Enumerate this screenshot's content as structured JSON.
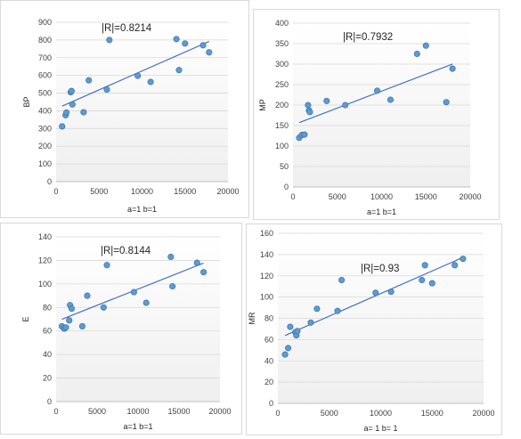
{
  "chart_data": [
    {
      "type": "scatter",
      "xlabel": "a=1  b=1",
      "ylabel": "BP",
      "annotation": "|R|=0.8214",
      "xlim": [
        0,
        20000
      ],
      "ylim": [
        0,
        900
      ],
      "xticks": [
        0,
        5000,
        10000,
        15000,
        20000
      ],
      "yticks": [
        0,
        100,
        200,
        300,
        400,
        500,
        600,
        700,
        800,
        900
      ],
      "grid": true,
      "trendline": "linear",
      "points": [
        [
          700,
          312
        ],
        [
          1100,
          375
        ],
        [
          1200,
          390
        ],
        [
          1700,
          505
        ],
        [
          1800,
          512
        ],
        [
          1900,
          436
        ],
        [
          3200,
          392
        ],
        [
          3800,
          572
        ],
        [
          5900,
          520
        ],
        [
          6200,
          800
        ],
        [
          9500,
          598
        ],
        [
          11000,
          563
        ],
        [
          14000,
          805
        ],
        [
          14300,
          630
        ],
        [
          15000,
          780
        ],
        [
          17100,
          770
        ],
        [
          17800,
          730
        ]
      ],
      "marker_color": "#5b9bd5",
      "line_color": "#4472c4"
    },
    {
      "type": "scatter",
      "xlabel": "a=1  b=1",
      "ylabel": "MP",
      "annotation": "|R|=0.7932",
      "xlim": [
        0,
        20000
      ],
      "ylim": [
        0,
        400
      ],
      "xticks": [
        0,
        5000,
        10000,
        15000,
        20000
      ],
      "yticks": [
        0,
        50,
        100,
        150,
        200,
        250,
        300,
        350,
        400
      ],
      "grid": true,
      "trendline": "linear",
      "points": [
        [
          700,
          120
        ],
        [
          1000,
          127
        ],
        [
          1300,
          128
        ],
        [
          1700,
          200
        ],
        [
          1800,
          187
        ],
        [
          1900,
          183
        ],
        [
          3800,
          210
        ],
        [
          5900,
          200
        ],
        [
          9500,
          235
        ],
        [
          11000,
          213
        ],
        [
          14000,
          325
        ],
        [
          15000,
          345
        ],
        [
          17300,
          207
        ],
        [
          18000,
          289
        ]
      ],
      "marker_color": "#5b9bd5",
      "line_color": "#4472c4"
    },
    {
      "type": "scatter",
      "xlabel": "a=1  b=1",
      "ylabel": "E",
      "annotation": "|R|=0.8144",
      "xlim": [
        0,
        20000
      ],
      "ylim": [
        0,
        140
      ],
      "xticks": [
        0,
        5000,
        10000,
        15000,
        20000
      ],
      "yticks": [
        0,
        20,
        40,
        60,
        80,
        100,
        120,
        140
      ],
      "grid": true,
      "trendline": "linear",
      "points": [
        [
          700,
          64
        ],
        [
          1000,
          62
        ],
        [
          1200,
          63
        ],
        [
          1600,
          69
        ],
        [
          1700,
          82
        ],
        [
          1900,
          79
        ],
        [
          3200,
          64
        ],
        [
          3800,
          90
        ],
        [
          5800,
          80
        ],
        [
          6200,
          116
        ],
        [
          9500,
          93
        ],
        [
          11000,
          84
        ],
        [
          14000,
          123
        ],
        [
          14200,
          98
        ],
        [
          17200,
          118
        ],
        [
          18000,
          110
        ]
      ],
      "marker_color": "#5b9bd5",
      "line_color": "#4472c4"
    },
    {
      "type": "scatter",
      "xlabel": "a= 1 b= 1",
      "ylabel": "MR",
      "annotation": "|R|=0.93",
      "xlim": [
        0,
        20000
      ],
      "ylim": [
        0,
        160
      ],
      "xticks": [
        0,
        5000,
        10000,
        15000,
        20000
      ],
      "yticks": [
        0,
        20,
        40,
        60,
        80,
        100,
        120,
        140,
        160
      ],
      "grid": true,
      "trendline": "linear",
      "points": [
        [
          700,
          46
        ],
        [
          1000,
          52
        ],
        [
          1200,
          72
        ],
        [
          1700,
          67
        ],
        [
          1800,
          64
        ],
        [
          1900,
          68
        ],
        [
          3200,
          76
        ],
        [
          3800,
          89
        ],
        [
          5800,
          87
        ],
        [
          6200,
          116
        ],
        [
          9500,
          104
        ],
        [
          11000,
          105
        ],
        [
          14000,
          116
        ],
        [
          14300,
          130
        ],
        [
          15000,
          113
        ],
        [
          17200,
          130
        ],
        [
          18000,
          136
        ]
      ],
      "marker_color": "#5b9bd5",
      "line_color": "#4472c4"
    }
  ]
}
